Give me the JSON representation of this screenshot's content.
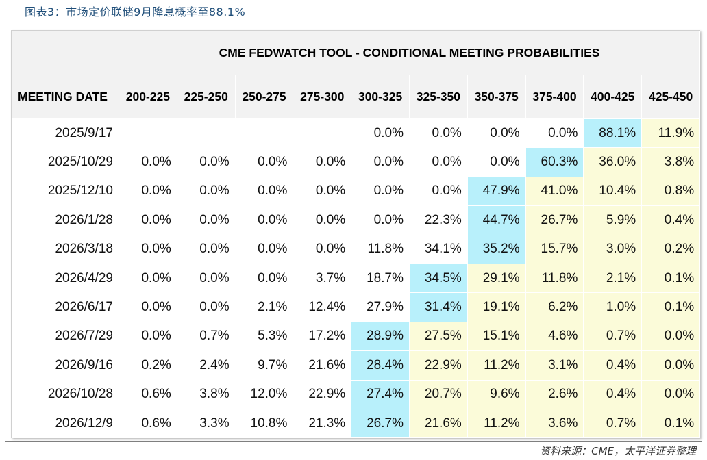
{
  "caption": "图表3：市场定价联储9月降息概率至88.1%",
  "table": {
    "title": "CME FEDWATCH TOOL - CONDITIONAL MEETING PROBABILITIES",
    "corner_label": "MEETING DATE",
    "columns": [
      "200-225",
      "225-250",
      "250-275",
      "275-300",
      "300-325",
      "325-350",
      "350-375",
      "375-400",
      "400-425",
      "425-450"
    ],
    "rows": [
      {
        "date": "2025/9/17",
        "values": [
          "",
          "",
          "",
          "",
          "0.0%",
          "0.0%",
          "0.0%",
          "0.0%",
          "88.1%",
          "11.9%"
        ],
        "highlight": [
          null,
          null,
          null,
          null,
          null,
          null,
          null,
          null,
          "cyan",
          "yellow"
        ]
      },
      {
        "date": "2025/10/29",
        "values": [
          "0.0%",
          "0.0%",
          "0.0%",
          "0.0%",
          "0.0%",
          "0.0%",
          "0.0%",
          "60.3%",
          "36.0%",
          "3.8%"
        ],
        "highlight": [
          null,
          null,
          null,
          null,
          null,
          null,
          null,
          "cyan",
          "yellow",
          "yellow"
        ]
      },
      {
        "date": "2025/12/10",
        "values": [
          "0.0%",
          "0.0%",
          "0.0%",
          "0.0%",
          "0.0%",
          "0.0%",
          "47.9%",
          "41.0%",
          "10.4%",
          "0.8%"
        ],
        "highlight": [
          null,
          null,
          null,
          null,
          null,
          null,
          "cyan",
          "yellow",
          "yellow",
          "yellow"
        ]
      },
      {
        "date": "2026/1/28",
        "values": [
          "0.0%",
          "0.0%",
          "0.0%",
          "0.0%",
          "0.0%",
          "22.3%",
          "44.7%",
          "26.7%",
          "5.9%",
          "0.4%"
        ],
        "highlight": [
          null,
          null,
          null,
          null,
          null,
          null,
          "cyan",
          "yellow",
          "yellow",
          "yellow"
        ]
      },
      {
        "date": "2026/3/18",
        "values": [
          "0.0%",
          "0.0%",
          "0.0%",
          "0.0%",
          "11.8%",
          "34.1%",
          "35.2%",
          "15.7%",
          "3.0%",
          "0.2%"
        ],
        "highlight": [
          null,
          null,
          null,
          null,
          null,
          null,
          "cyan",
          "yellow",
          "yellow",
          "yellow"
        ]
      },
      {
        "date": "2026/4/29",
        "values": [
          "0.0%",
          "0.0%",
          "0.0%",
          "3.7%",
          "18.7%",
          "34.5%",
          "29.1%",
          "11.8%",
          "2.1%",
          "0.1%"
        ],
        "highlight": [
          null,
          null,
          null,
          null,
          null,
          "cyan",
          "yellow",
          "yellow",
          "yellow",
          "yellow"
        ]
      },
      {
        "date": "2026/6/17",
        "values": [
          "0.0%",
          "0.0%",
          "2.1%",
          "12.4%",
          "27.9%",
          "31.4%",
          "19.1%",
          "6.2%",
          "1.0%",
          "0.1%"
        ],
        "highlight": [
          null,
          null,
          null,
          null,
          null,
          "cyan",
          "yellow",
          "yellow",
          "yellow",
          "yellow"
        ]
      },
      {
        "date": "2026/7/29",
        "values": [
          "0.0%",
          "0.7%",
          "5.3%",
          "17.2%",
          "28.9%",
          "27.5%",
          "15.1%",
          "4.6%",
          "0.7%",
          "0.0%"
        ],
        "highlight": [
          null,
          null,
          null,
          null,
          "cyan",
          "yellow",
          "yellow",
          "yellow",
          "yellow",
          "yellow"
        ]
      },
      {
        "date": "2026/9/16",
        "values": [
          "0.2%",
          "2.4%",
          "9.7%",
          "21.6%",
          "28.4%",
          "22.9%",
          "11.2%",
          "3.1%",
          "0.4%",
          "0.0%"
        ],
        "highlight": [
          null,
          null,
          null,
          null,
          "cyan",
          "yellow",
          "yellow",
          "yellow",
          "yellow",
          "yellow"
        ]
      },
      {
        "date": "2026/10/28",
        "values": [
          "0.6%",
          "3.8%",
          "12.0%",
          "22.9%",
          "27.4%",
          "20.7%",
          "9.6%",
          "2.6%",
          "0.4%",
          "0.0%"
        ],
        "highlight": [
          null,
          null,
          null,
          null,
          "cyan",
          "yellow",
          "yellow",
          "yellow",
          "yellow",
          "yellow"
        ]
      },
      {
        "date": "2026/12/9",
        "values": [
          "0.6%",
          "3.3%",
          "10.8%",
          "21.3%",
          "26.7%",
          "21.6%",
          "11.2%",
          "3.6%",
          "0.7%",
          "0.1%"
        ],
        "highlight": [
          null,
          null,
          null,
          null,
          "cyan",
          "yellow",
          "yellow",
          "yellow",
          "yellow",
          "yellow"
        ]
      }
    ]
  },
  "source": "资料来源：CME，太平洋证券整理",
  "colors": {
    "caption": "#1f4e79",
    "header_bg": "#f2f2f2",
    "cyan": "#b8f0fb",
    "yellow": "#fbfbd9"
  }
}
